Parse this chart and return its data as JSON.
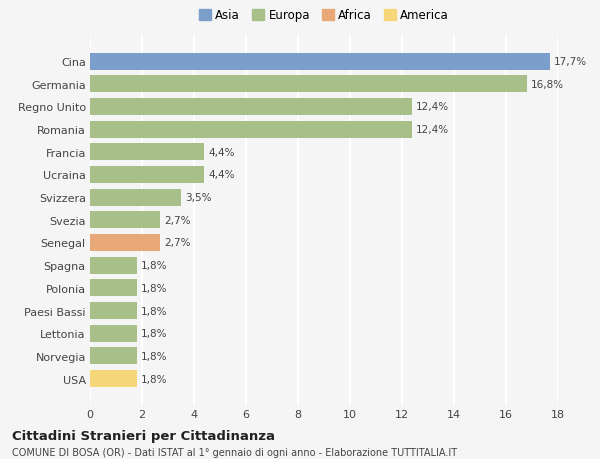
{
  "categories": [
    "USA",
    "Norvegia",
    "Lettonia",
    "Paesi Bassi",
    "Polonia",
    "Spagna",
    "Senegal",
    "Svezia",
    "Svizzera",
    "Ucraina",
    "Francia",
    "Romania",
    "Regno Unito",
    "Germania",
    "Cina"
  ],
  "values": [
    1.8,
    1.8,
    1.8,
    1.8,
    1.8,
    1.8,
    2.7,
    2.7,
    3.5,
    4.4,
    4.4,
    12.4,
    12.4,
    16.8,
    17.7
  ],
  "labels": [
    "1,8%",
    "1,8%",
    "1,8%",
    "1,8%",
    "1,8%",
    "1,8%",
    "2,7%",
    "2,7%",
    "3,5%",
    "4,4%",
    "4,4%",
    "12,4%",
    "12,4%",
    "16,8%",
    "17,7%"
  ],
  "colors": [
    "#f5d77a",
    "#a8bf8a",
    "#a8bf8a",
    "#a8bf8a",
    "#a8bf8a",
    "#a8bf8a",
    "#e8a878",
    "#a8bf8a",
    "#a8bf8a",
    "#a8bf8a",
    "#a8bf8a",
    "#a8bf8a",
    "#a8bf8a",
    "#a8bf8a",
    "#7b9eca"
  ],
  "legend_labels": [
    "Asia",
    "Europa",
    "Africa",
    "America"
  ],
  "legend_colors": [
    "#7b9eca",
    "#a8bf8a",
    "#e8a878",
    "#f5d77a"
  ],
  "xlim": [
    0,
    18
  ],
  "xticks": [
    0,
    2,
    4,
    6,
    8,
    10,
    12,
    14,
    16,
    18
  ],
  "title": "Cittadini Stranieri per Cittadinanza",
  "subtitle": "COMUNE DI BOSA (OR) - Dati ISTAT al 1° gennaio di ogni anno - Elaborazione TUTTITALIA.IT",
  "bg_color": "#f5f5f5",
  "grid_color": "#ffffff",
  "bar_height": 0.75
}
